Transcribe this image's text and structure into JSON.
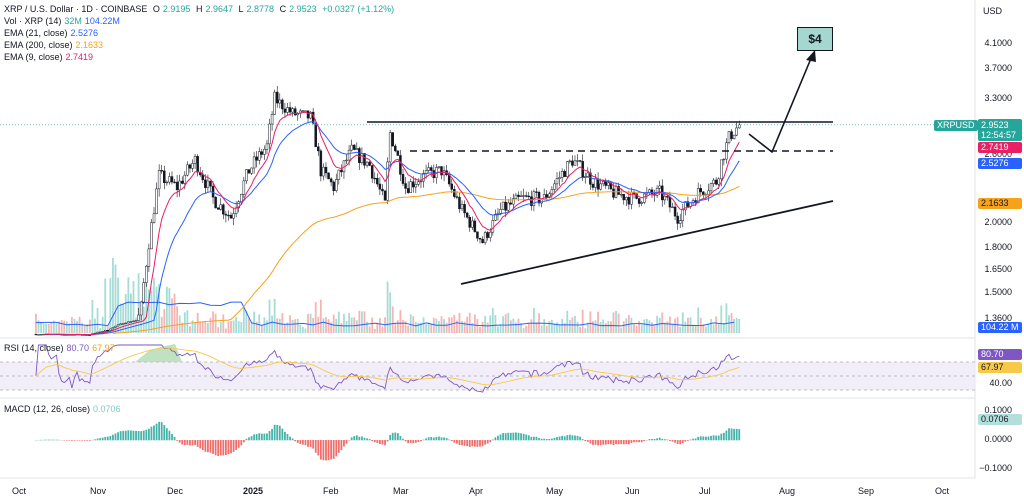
{
  "header": {
    "symbol": "XRP / U.S. Dollar · 1D · COINBASE",
    "o_label": "O",
    "o": "2.9195",
    "h_label": "H",
    "h": "2.9647",
    "l_label": "L",
    "l": "2.8778",
    "c_label": "C",
    "c": "2.9523",
    "change": "+0.0327 (+1.12%)",
    "currency": "USD"
  },
  "legend": {
    "vol_label": "Vol · XRP (14)",
    "vol_a": "32M",
    "vol_b": "104.22M",
    "ema21_label": "EMA (21, close)",
    "ema21": "2.5276",
    "ema200_label": "EMA (200, close)",
    "ema200": "2.1633",
    "ema9_label": "EMA (9, close)",
    "ema9": "2.7419",
    "rsi_label": "RSI (14, close)",
    "rsi_a": "80.70",
    "rsi_b": "67.97",
    "macd_label": "MACD (12, 26, close)",
    "macd": "0.0706"
  },
  "price_tags": {
    "ticker": "XRPUSD",
    "last": "2.9523",
    "countdown": "12:54:57",
    "ema9": "2.7419",
    "ema21": "2.5276",
    "ema200": "2.1633",
    "volume": "104.22 M",
    "rsi": "80.70",
    "rsi_ma": "67.97",
    "macd": "0.0706"
  },
  "target_label": "$4",
  "colors": {
    "up": "#26a69a",
    "down": "#ef5350",
    "ema21": "#2962ff",
    "ema200": "#f7a21b",
    "ema9": "#e91e63",
    "rsi": "#7e57c2",
    "rsi_ma": "#f7c948",
    "vol_ma": "#2962ff"
  },
  "chart_data": {
    "type": "candlestick",
    "ylabel": "USD",
    "price_axis": [
      "4.1000",
      "3.7000",
      "3.3000",
      "2.6000",
      "2.0000",
      "1.8000",
      "1.6500",
      "1.5000",
      "1.3600"
    ],
    "rsi_axis": [
      "40.00"
    ],
    "macd_axis": [
      "0.1000",
      "0.0000",
      "−0.1000"
    ],
    "x_axis": [
      "Oct",
      "Nov",
      "Dec",
      "2025",
      "Feb",
      "Mar",
      "Apr",
      "May",
      "Jun",
      "Jul",
      "Aug",
      "Sep",
      "Oct"
    ],
    "x_axis_bold": "2025",
    "last_close": 2.9523,
    "resistance": 3.0,
    "neckline": 2.75,
    "ema_last": {
      "ema9": 2.7419,
      "ema21": 2.5276,
      "ema200": 2.1633
    },
    "rsi_last": 80.7,
    "rsi_ma_last": 67.97,
    "macd_last": 0.0706,
    "target": 4.0,
    "price_path": [
      [
        "2024-10-15",
        0.53
      ],
      [
        "2024-11-05",
        0.51
      ],
      [
        "2024-11-12",
        0.7
      ],
      [
        "2024-11-18",
        1.1
      ],
      [
        "2024-11-25",
        1.42
      ],
      [
        "2024-12-02",
        2.4
      ],
      [
        "2024-12-09",
        2.3
      ],
      [
        "2024-12-16",
        2.55
      ],
      [
        "2024-12-23",
        2.2
      ],
      [
        "2024-12-30",
        2.05
      ],
      [
        "2025-01-06",
        2.45
      ],
      [
        "2025-01-13",
        2.7
      ],
      [
        "2025-01-16",
        3.3
      ],
      [
        "2025-01-23",
        3.1
      ],
      [
        "2025-01-30",
        3.05
      ],
      [
        "2025-02-03",
        2.45
      ],
      [
        "2025-02-08",
        2.3
      ],
      [
        "2025-02-15",
        2.65
      ],
      [
        "2025-02-22",
        2.5
      ],
      [
        "2025-02-28",
        2.15
      ],
      [
        "2025-03-02",
        2.85
      ],
      [
        "2025-03-08",
        2.3
      ],
      [
        "2025-03-15",
        2.4
      ],
      [
        "2025-03-22",
        2.45
      ],
      [
        "2025-03-30",
        2.1
      ],
      [
        "2025-04-07",
        1.85
      ],
      [
        "2025-04-14",
        2.1
      ],
      [
        "2025-04-22",
        2.2
      ],
      [
        "2025-05-01",
        2.2
      ],
      [
        "2025-05-12",
        2.55
      ],
      [
        "2025-05-20",
        2.35
      ],
      [
        "2025-05-28",
        2.25
      ],
      [
        "2025-06-05",
        2.2
      ],
      [
        "2025-06-15",
        2.25
      ],
      [
        "2025-06-22",
        2.05
      ],
      [
        "2025-06-30",
        2.25
      ],
      [
        "2025-07-07",
        2.35
      ],
      [
        "2025-07-12",
        2.8
      ],
      [
        "2025-07-16",
        2.95
      ]
    ]
  }
}
